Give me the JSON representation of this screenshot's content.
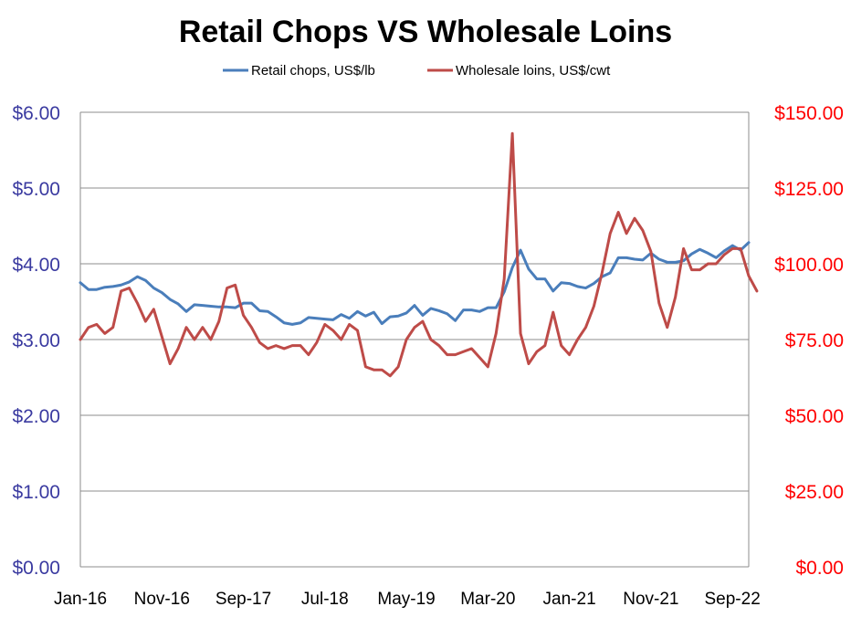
{
  "chart_data": {
    "type": "line",
    "title": "Retail Chops VS Wholesale Loins",
    "legend_position": "top",
    "grid": true,
    "x_tick_labels": [
      "Jan-16",
      "Nov-16",
      "Sep-17",
      "Jul-18",
      "May-19",
      "Mar-20",
      "Jan-21",
      "Nov-21",
      "Sep-22"
    ],
    "x_tick_indices": [
      0,
      10,
      20,
      30,
      40,
      50,
      60,
      70,
      80
    ],
    "y_left": {
      "min": 0,
      "max": 6,
      "tick_values": [
        0,
        1,
        2,
        3,
        4,
        5,
        6
      ],
      "tick_labels": [
        "$0.00",
        "$1.00",
        "$2.00",
        "$3.00",
        "$4.00",
        "$5.00",
        "$6.00"
      ],
      "color": "#3a3aa0"
    },
    "y_right": {
      "min": 0,
      "max": 150,
      "tick_values": [
        0,
        25,
        50,
        75,
        100,
        125,
        150
      ],
      "tick_labels": [
        "$0.00",
        "$25.00",
        "$50.00",
        "$75.00",
        "$100.00",
        "$125.00",
        "$150.00"
      ],
      "color": "#ff0000"
    },
    "series": [
      {
        "name": "Retail chops, US$/lb",
        "axis": "left",
        "color": "#4a7ebb",
        "values": [
          3.75,
          3.66,
          3.66,
          3.69,
          3.7,
          3.72,
          3.76,
          3.83,
          3.78,
          3.68,
          3.62,
          3.53,
          3.47,
          3.37,
          3.46,
          3.45,
          3.44,
          3.43,
          3.43,
          3.42,
          3.48,
          3.48,
          3.38,
          3.37,
          3.3,
          3.22,
          3.2,
          3.22,
          3.29,
          3.28,
          3.27,
          3.26,
          3.33,
          3.28,
          3.37,
          3.31,
          3.36,
          3.21,
          3.3,
          3.31,
          3.35,
          3.45,
          3.32,
          3.41,
          3.38,
          3.34,
          3.25,
          3.39,
          3.39,
          3.37,
          3.42,
          3.42,
          3.63,
          3.95,
          4.18,
          3.93,
          3.8,
          3.8,
          3.64,
          3.75,
          3.74,
          3.7,
          3.68,
          3.74,
          3.83,
          3.88,
          4.08,
          4.08,
          4.06,
          4.05,
          4.14,
          4.06,
          4.02,
          4.02,
          4.04,
          4.13,
          4.19,
          4.14,
          4.08,
          4.17,
          4.24,
          4.18,
          4.28
        ]
      },
      {
        "name": "Wholesale loins, US$/cwt",
        "axis": "right",
        "color": "#be4b48",
        "values": [
          75,
          79,
          80,
          77,
          79,
          91,
          92,
          87,
          81,
          85,
          76,
          67,
          72,
          79,
          75,
          79,
          75,
          81,
          92,
          93,
          83,
          79,
          74,
          72,
          73,
          72,
          73,
          73,
          70,
          74,
          80,
          78,
          75,
          80,
          78,
          66,
          65,
          65,
          63,
          66,
          75,
          79,
          81,
          75,
          73,
          70,
          70,
          71,
          72,
          69,
          66,
          77,
          95,
          143,
          77,
          67,
          71,
          73,
          84,
          73,
          70,
          75,
          79,
          86,
          97,
          110,
          117,
          110,
          115,
          111,
          104,
          87,
          79,
          89,
          105,
          98,
          98,
          100,
          100,
          103,
          105,
          105,
          96,
          91
        ]
      }
    ]
  }
}
